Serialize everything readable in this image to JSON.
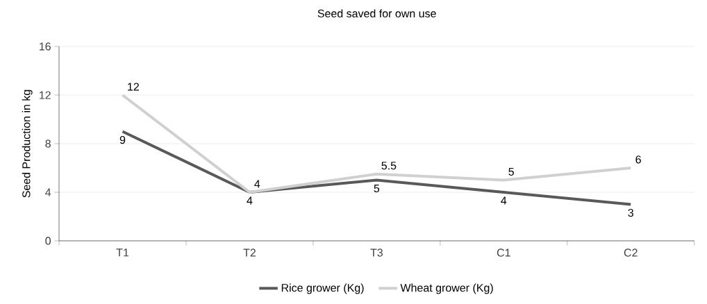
{
  "chart_data": {
    "type": "line",
    "title": "Seed saved for own use",
    "ylabel": "Seed Production in kg",
    "categories": [
      "T1",
      "T2",
      "T3",
      "C1",
      "C2"
    ],
    "series": [
      {
        "name": "Rice grower (Kg)",
        "color": "#595959",
        "values": [
          9,
          4,
          5,
          4,
          3
        ]
      },
      {
        "name": "Wheat grower (Kg)",
        "color": "#d0d0d0",
        "values": [
          12,
          4,
          5.5,
          5,
          6
        ]
      }
    ],
    "ylim": [
      0,
      16
    ],
    "yticks": [
      0,
      4,
      8,
      12,
      16
    ],
    "grid": "y",
    "legend": "bottom",
    "data_labels": true,
    "marker": "none",
    "line_style": "solid"
  }
}
